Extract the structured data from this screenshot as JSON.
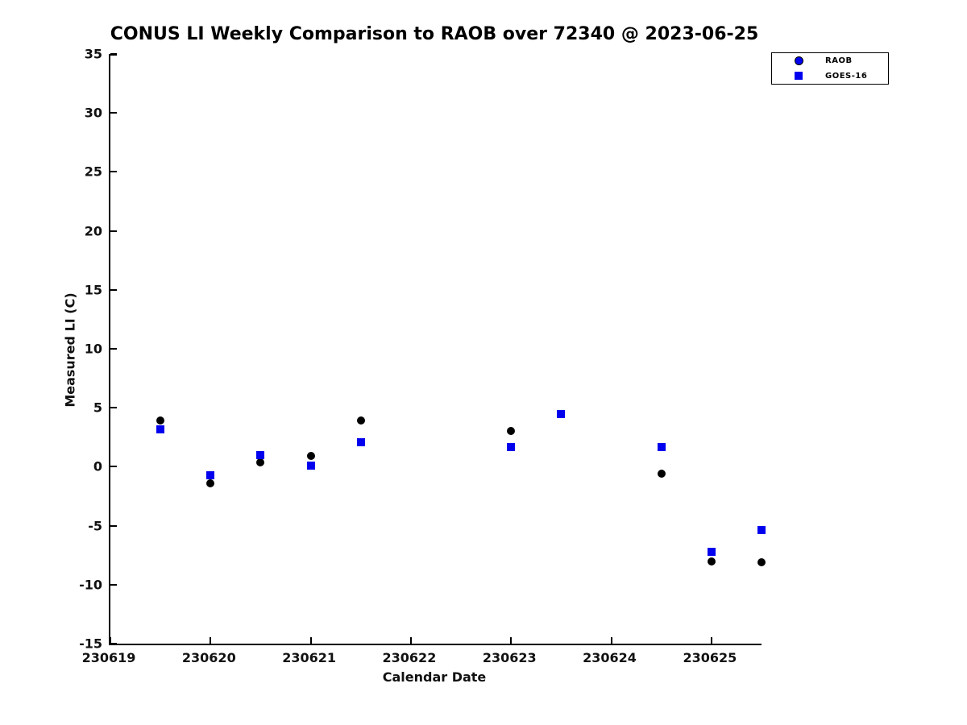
{
  "chart_data": {
    "type": "scatter",
    "title": "CONUS LI Weekly Comparison to RAOB over 72340 @ 2023-06-25",
    "xlabel": "Calendar Date",
    "ylabel": "Measured LI (C)",
    "xlim": [
      230619,
      230625.5
    ],
    "ylim": [
      -15,
      35
    ],
    "x_ticks": [
      230619,
      230620,
      230621,
      230622,
      230623,
      230624,
      230625
    ],
    "y_ticks": [
      35,
      30,
      25,
      20,
      15,
      10,
      5,
      0,
      -5,
      -10,
      -15
    ],
    "grid": false,
    "legend_position": "top-right-outside",
    "colors": {
      "blue": "#0000ee",
      "black": "#000000",
      "axis": "#000000",
      "tick_label": "#111111"
    },
    "series": [
      {
        "name": "RAOB",
        "marker": "circle",
        "plot_color": "#000000",
        "legend_color": "#0000ee",
        "x": [
          230619.5,
          230620.0,
          230620.5,
          230621.0,
          230621.5,
          230623.0,
          230623.5,
          230624.5,
          230625.0,
          230625.5
        ],
        "y": [
          3.9,
          -1.4,
          0.4,
          0.9,
          3.9,
          3.0,
          4.5,
          -0.6,
          -8.0,
          -8.1
        ]
      },
      {
        "name": "GOES-16",
        "marker": "square",
        "plot_color": "#0000ee",
        "legend_color": "#0000ee",
        "x": [
          230619.5,
          230620.0,
          230620.5,
          230621.0,
          230621.5,
          230623.0,
          230623.5,
          230624.5,
          230625.0,
          230625.5
        ],
        "y": [
          3.2,
          -0.7,
          1.0,
          0.1,
          2.1,
          1.7,
          4.5,
          1.7,
          -7.2,
          -5.4
        ]
      }
    ]
  }
}
